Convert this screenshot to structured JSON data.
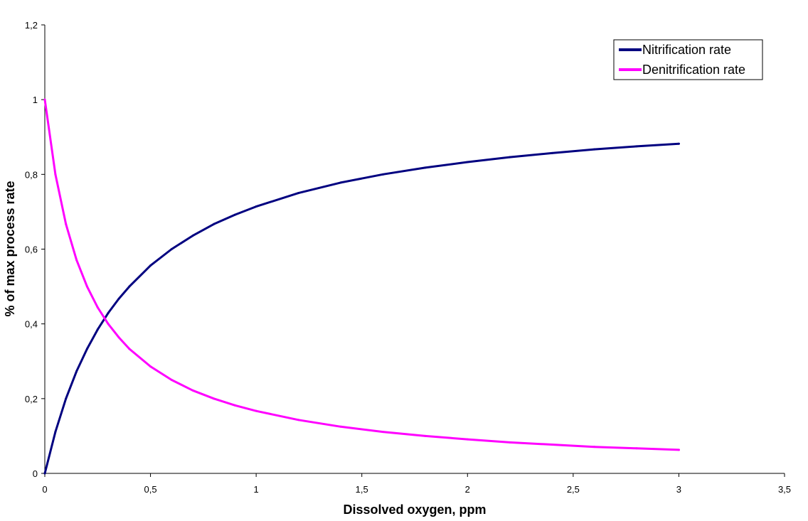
{
  "chart_data": {
    "type": "line",
    "title": "",
    "xlabel": "Dissolved oxygen, ppm",
    "ylabel": "% of max process rate",
    "xlim": [
      0,
      3.5
    ],
    "ylim": [
      0,
      1.2
    ],
    "x_ticks": [
      0,
      0.5,
      1,
      1.5,
      2,
      2.5,
      3,
      3.5
    ],
    "x_tick_labels": [
      "0",
      "0,5",
      "1",
      "1,5",
      "2",
      "2,5",
      "3",
      "3,5"
    ],
    "y_ticks": [
      0,
      0.2,
      0.4,
      0.6,
      0.8,
      1,
      1.2
    ],
    "y_tick_labels": [
      "0",
      "0,2",
      "0,4",
      "0,6",
      "0,8",
      "1",
      "1,2"
    ],
    "grid": false,
    "legend_position": "top-right",
    "x": [
      0,
      0.05,
      0.1,
      0.15,
      0.2,
      0.25,
      0.3,
      0.35,
      0.4,
      0.5,
      0.6,
      0.7,
      0.8,
      0.9,
      1.0,
      1.2,
      1.4,
      1.6,
      1.8,
      2.0,
      2.2,
      2.4,
      2.6,
      2.8,
      3.0
    ],
    "series": [
      {
        "name": "Nitrification rate",
        "color": "#000080",
        "values": [
          0,
          0.111,
          0.2,
          0.273,
          0.333,
          0.385,
          0.429,
          0.467,
          0.5,
          0.556,
          0.6,
          0.636,
          0.667,
          0.692,
          0.714,
          0.75,
          0.778,
          0.8,
          0.818,
          0.833,
          0.846,
          0.857,
          0.867,
          0.875,
          0.882
        ]
      },
      {
        "name": "Denitrification rate",
        "color": "#FF00FF",
        "values": [
          1,
          0.8,
          0.667,
          0.571,
          0.5,
          0.444,
          0.4,
          0.364,
          0.333,
          0.286,
          0.25,
          0.222,
          0.2,
          0.182,
          0.167,
          0.143,
          0.125,
          0.111,
          0.1,
          0.091,
          0.083,
          0.077,
          0.071,
          0.067,
          0.063
        ]
      }
    ]
  }
}
